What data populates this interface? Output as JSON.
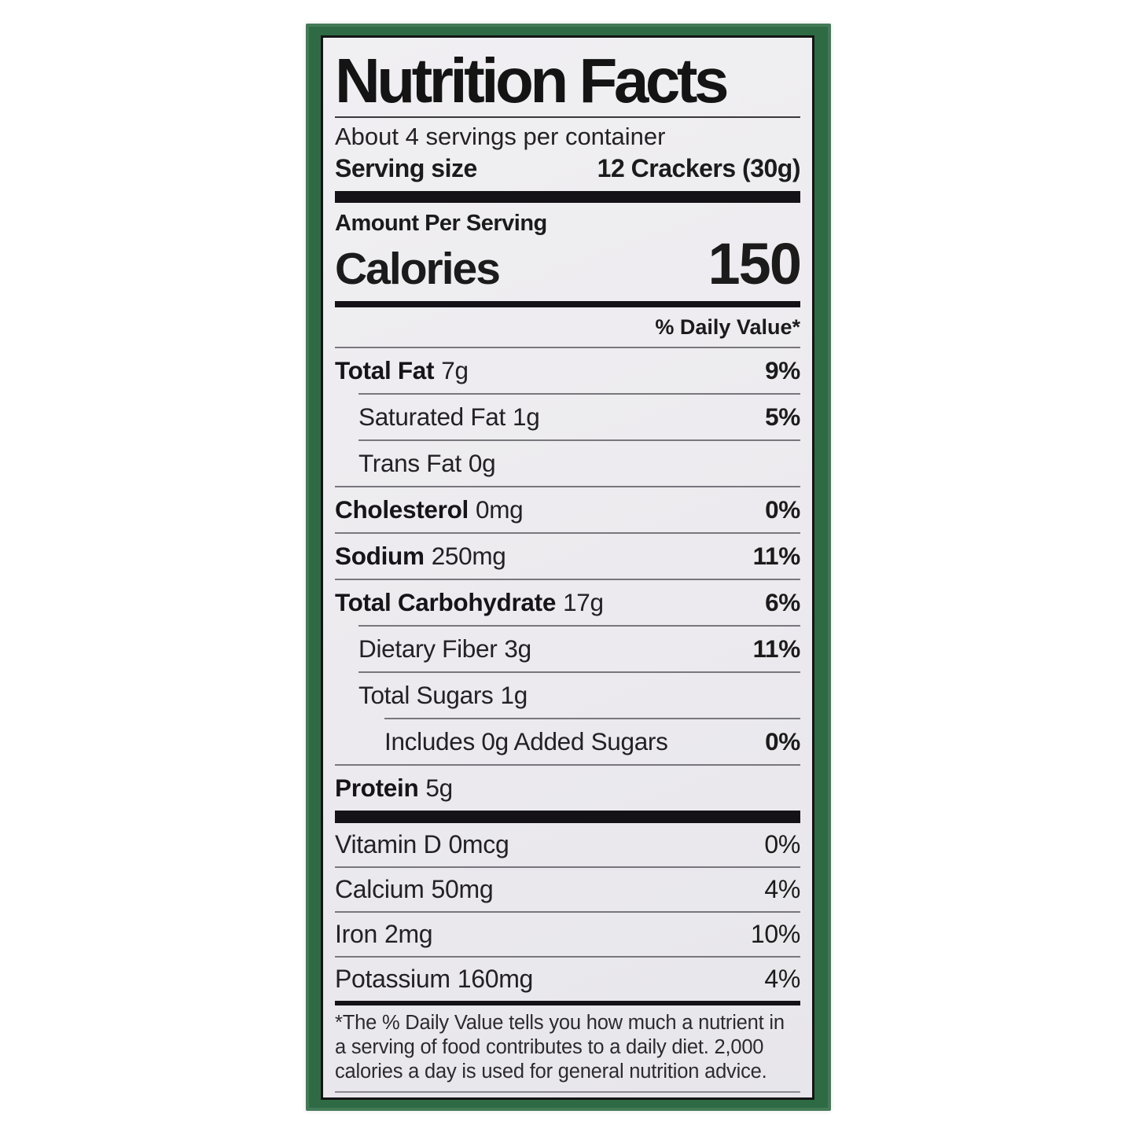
{
  "label": {
    "title": "Nutrition Facts",
    "servings_per_container": "About 4 servings per container",
    "serving_size_label": "Serving size",
    "serving_size_value": "12 Crackers (30g)",
    "amount_per_serving": "Amount Per Serving",
    "calories_label": "Calories",
    "calories_value": "150",
    "daily_value_header": "% Daily Value*",
    "nutrients": [
      {
        "name": "Total Fat",
        "amount": "7g",
        "dv": "9%"
      },
      {
        "name": "Saturated Fat",
        "amount": "1g",
        "dv": "5%"
      },
      {
        "name": "Trans Fat",
        "amount": "0g",
        "dv": ""
      },
      {
        "name": "Cholesterol",
        "amount": "0mg",
        "dv": "0%"
      },
      {
        "name": "Sodium",
        "amount": "250mg",
        "dv": "11%"
      },
      {
        "name": "Total Carbohydrate",
        "amount": "17g",
        "dv": "6%"
      },
      {
        "name": "Dietary Fiber",
        "amount": "3g",
        "dv": "11%"
      },
      {
        "name": "Total Sugars",
        "amount": "1g",
        "dv": ""
      },
      {
        "name": "Includes 0g Added Sugars",
        "amount": "",
        "dv": "0%"
      },
      {
        "name": "Protein",
        "amount": "5g",
        "dv": ""
      }
    ],
    "vitamins": [
      {
        "name": "Vitamin D",
        "amount": "0mcg",
        "dv": "0%"
      },
      {
        "name": "Calcium",
        "amount": "50mg",
        "dv": "4%"
      },
      {
        "name": "Iron",
        "amount": "2mg",
        "dv": "10%"
      },
      {
        "name": "Potassium",
        "amount": "160mg",
        "dv": "4%"
      }
    ],
    "footnote": "*The % Daily Value tells you how much a nutrient in a serving of food contributes to a daily diet. 2,000 calories a day is used for general nutrition advice."
  },
  "colors": {
    "package_green": "#2e6b44",
    "paper": "#eceaee",
    "ink": "#141216"
  }
}
